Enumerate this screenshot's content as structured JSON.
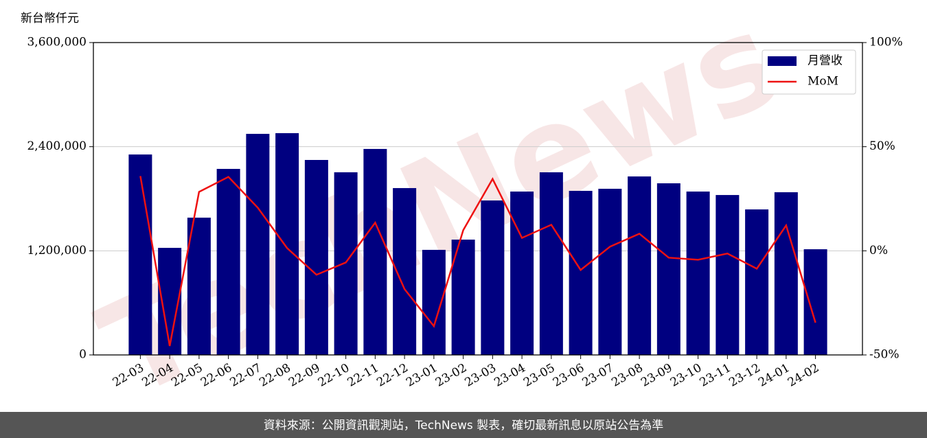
{
  "chart_data": {
    "type": "bar_line",
    "y_label": "新台幣仟元",
    "categories": [
      "22-03",
      "22-04",
      "22-05",
      "22-06",
      "22-07",
      "22-08",
      "22-09",
      "22-10",
      "22-11",
      "22-12",
      "23-01",
      "23-02",
      "23-03",
      "23-04",
      "23-05",
      "23-06",
      "23-07",
      "23-08",
      "23-09",
      "23-10",
      "23-11",
      "23-12",
      "24-01",
      "24-02"
    ],
    "series": [
      {
        "name": "月營收",
        "type": "bar",
        "color": "#000080",
        "values": [
          2310000,
          1234000,
          1582000,
          2144000,
          2548000,
          2556000,
          2247000,
          2105000,
          2374000,
          1923000,
          1211000,
          1329000,
          1780000,
          1883000,
          2105000,
          1891000,
          1915000,
          2057000,
          1978000,
          1883000,
          1843000,
          1677000,
          1875000,
          1218000
        ]
      },
      {
        "name": "MoM",
        "type": "line",
        "axis": "y2",
        "color": "#ee1111",
        "values": [
          35.9,
          -45.7,
          28.3,
          35.5,
          20.7,
          1.3,
          -11.5,
          -5.6,
          13.5,
          -18.4,
          -36.2,
          9.9,
          34.5,
          6.2,
          12.5,
          -9.2,
          2.0,
          8.2,
          -3.3,
          -4.3,
          -1.3,
          -8.6,
          12.2,
          -34.5
        ]
      }
    ],
    "ylim": [
      0,
      3600000
    ],
    "yticks": [
      0,
      {
        "value": 1200000,
        "label": "1,200,000"
      },
      {
        "value": 2400000,
        "label": "2,400,000"
      },
      {
        "value": 3600000,
        "label": "3,600,000"
      }
    ],
    "y2lim": [
      -50,
      100
    ],
    "y2ticks": [
      {
        "value": -50,
        "label": "-50%"
      },
      {
        "value": 0,
        "label": "0%"
      },
      {
        "value": 50,
        "label": "50%"
      },
      {
        "value": 100,
        "label": "100%"
      }
    ],
    "grid": true,
    "legend": "upper right",
    "watermark": "TechNews",
    "footer": "資料來源：公開資訊觀測站，TechNews 製表，確切最新訊息以原站公告為準"
  }
}
